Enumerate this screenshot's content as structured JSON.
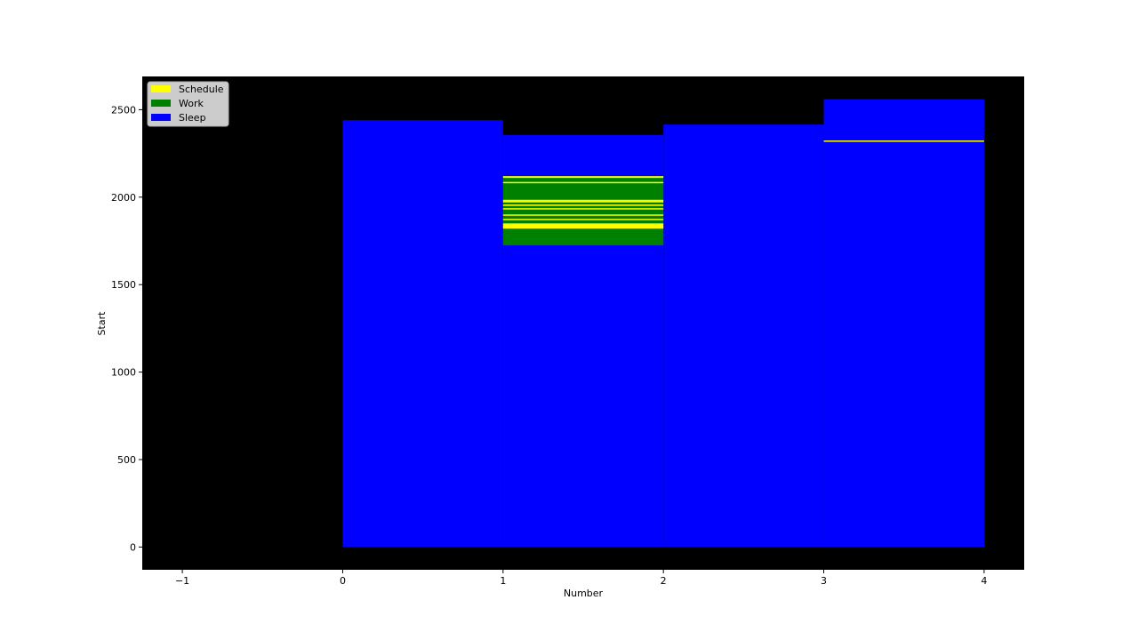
{
  "chart_data": {
    "type": "bar",
    "xlabel": "Number",
    "ylabel": "Start",
    "xlim": [
      -1.25,
      4.25
    ],
    "ylim": [
      -130,
      2690
    ],
    "x_ticks": [
      -1,
      0,
      1,
      2,
      3,
      4
    ],
    "x_tick_labels": [
      "−1",
      "0",
      "1",
      "2",
      "3",
      "4"
    ],
    "y_ticks": [
      0,
      500,
      1000,
      1500,
      2000,
      2500
    ],
    "y_tick_labels": [
      "0",
      "500",
      "1000",
      "1500",
      "2000",
      "2500"
    ],
    "background_color": "#000000",
    "grid": false,
    "legend": {
      "position": "upper-left",
      "entries": [
        {
          "label": "Schedule",
          "color": "#ffff00"
        },
        {
          "label": "Work",
          "color": "#008000"
        },
        {
          "label": "Sleep",
          "color": "#0000ff"
        }
      ]
    },
    "series": [
      {
        "name": "Sleep",
        "color": "#0000ff",
        "bars": [
          {
            "x0": 0,
            "x1": 1,
            "bottom": 0,
            "top": 2440
          },
          {
            "x0": 1,
            "x1": 2,
            "bottom": 0,
            "top": 2355
          },
          {
            "x0": 2,
            "x1": 3,
            "bottom": 0,
            "top": 2415
          },
          {
            "x0": 3,
            "x1": 4,
            "bottom": 0,
            "top": 2560
          }
        ]
      },
      {
        "name": "Work",
        "color": "#008000",
        "bars": [
          {
            "x0": 1,
            "x1": 2,
            "bottom": 1725,
            "top": 2120
          }
        ]
      },
      {
        "name": "Schedule",
        "color": "#ffff00",
        "bars": [
          {
            "x0": 1,
            "x1": 2,
            "bottom": 2110,
            "top": 2120
          },
          {
            "x0": 1,
            "x1": 2,
            "bottom": 2080,
            "top": 2087
          },
          {
            "x0": 1,
            "x1": 2,
            "bottom": 1970,
            "top": 1985
          },
          {
            "x0": 1,
            "x1": 2,
            "bottom": 1950,
            "top": 1958
          },
          {
            "x0": 1,
            "x1": 2,
            "bottom": 1930,
            "top": 1937
          },
          {
            "x0": 1,
            "x1": 2,
            "bottom": 1895,
            "top": 1901
          },
          {
            "x0": 1,
            "x1": 2,
            "bottom": 1870,
            "top": 1876
          },
          {
            "x0": 1,
            "x1": 2,
            "bottom": 1820,
            "top": 1850
          },
          {
            "x0": 3,
            "x1": 4,
            "bottom": 2318,
            "top": 2324
          }
        ]
      }
    ]
  }
}
